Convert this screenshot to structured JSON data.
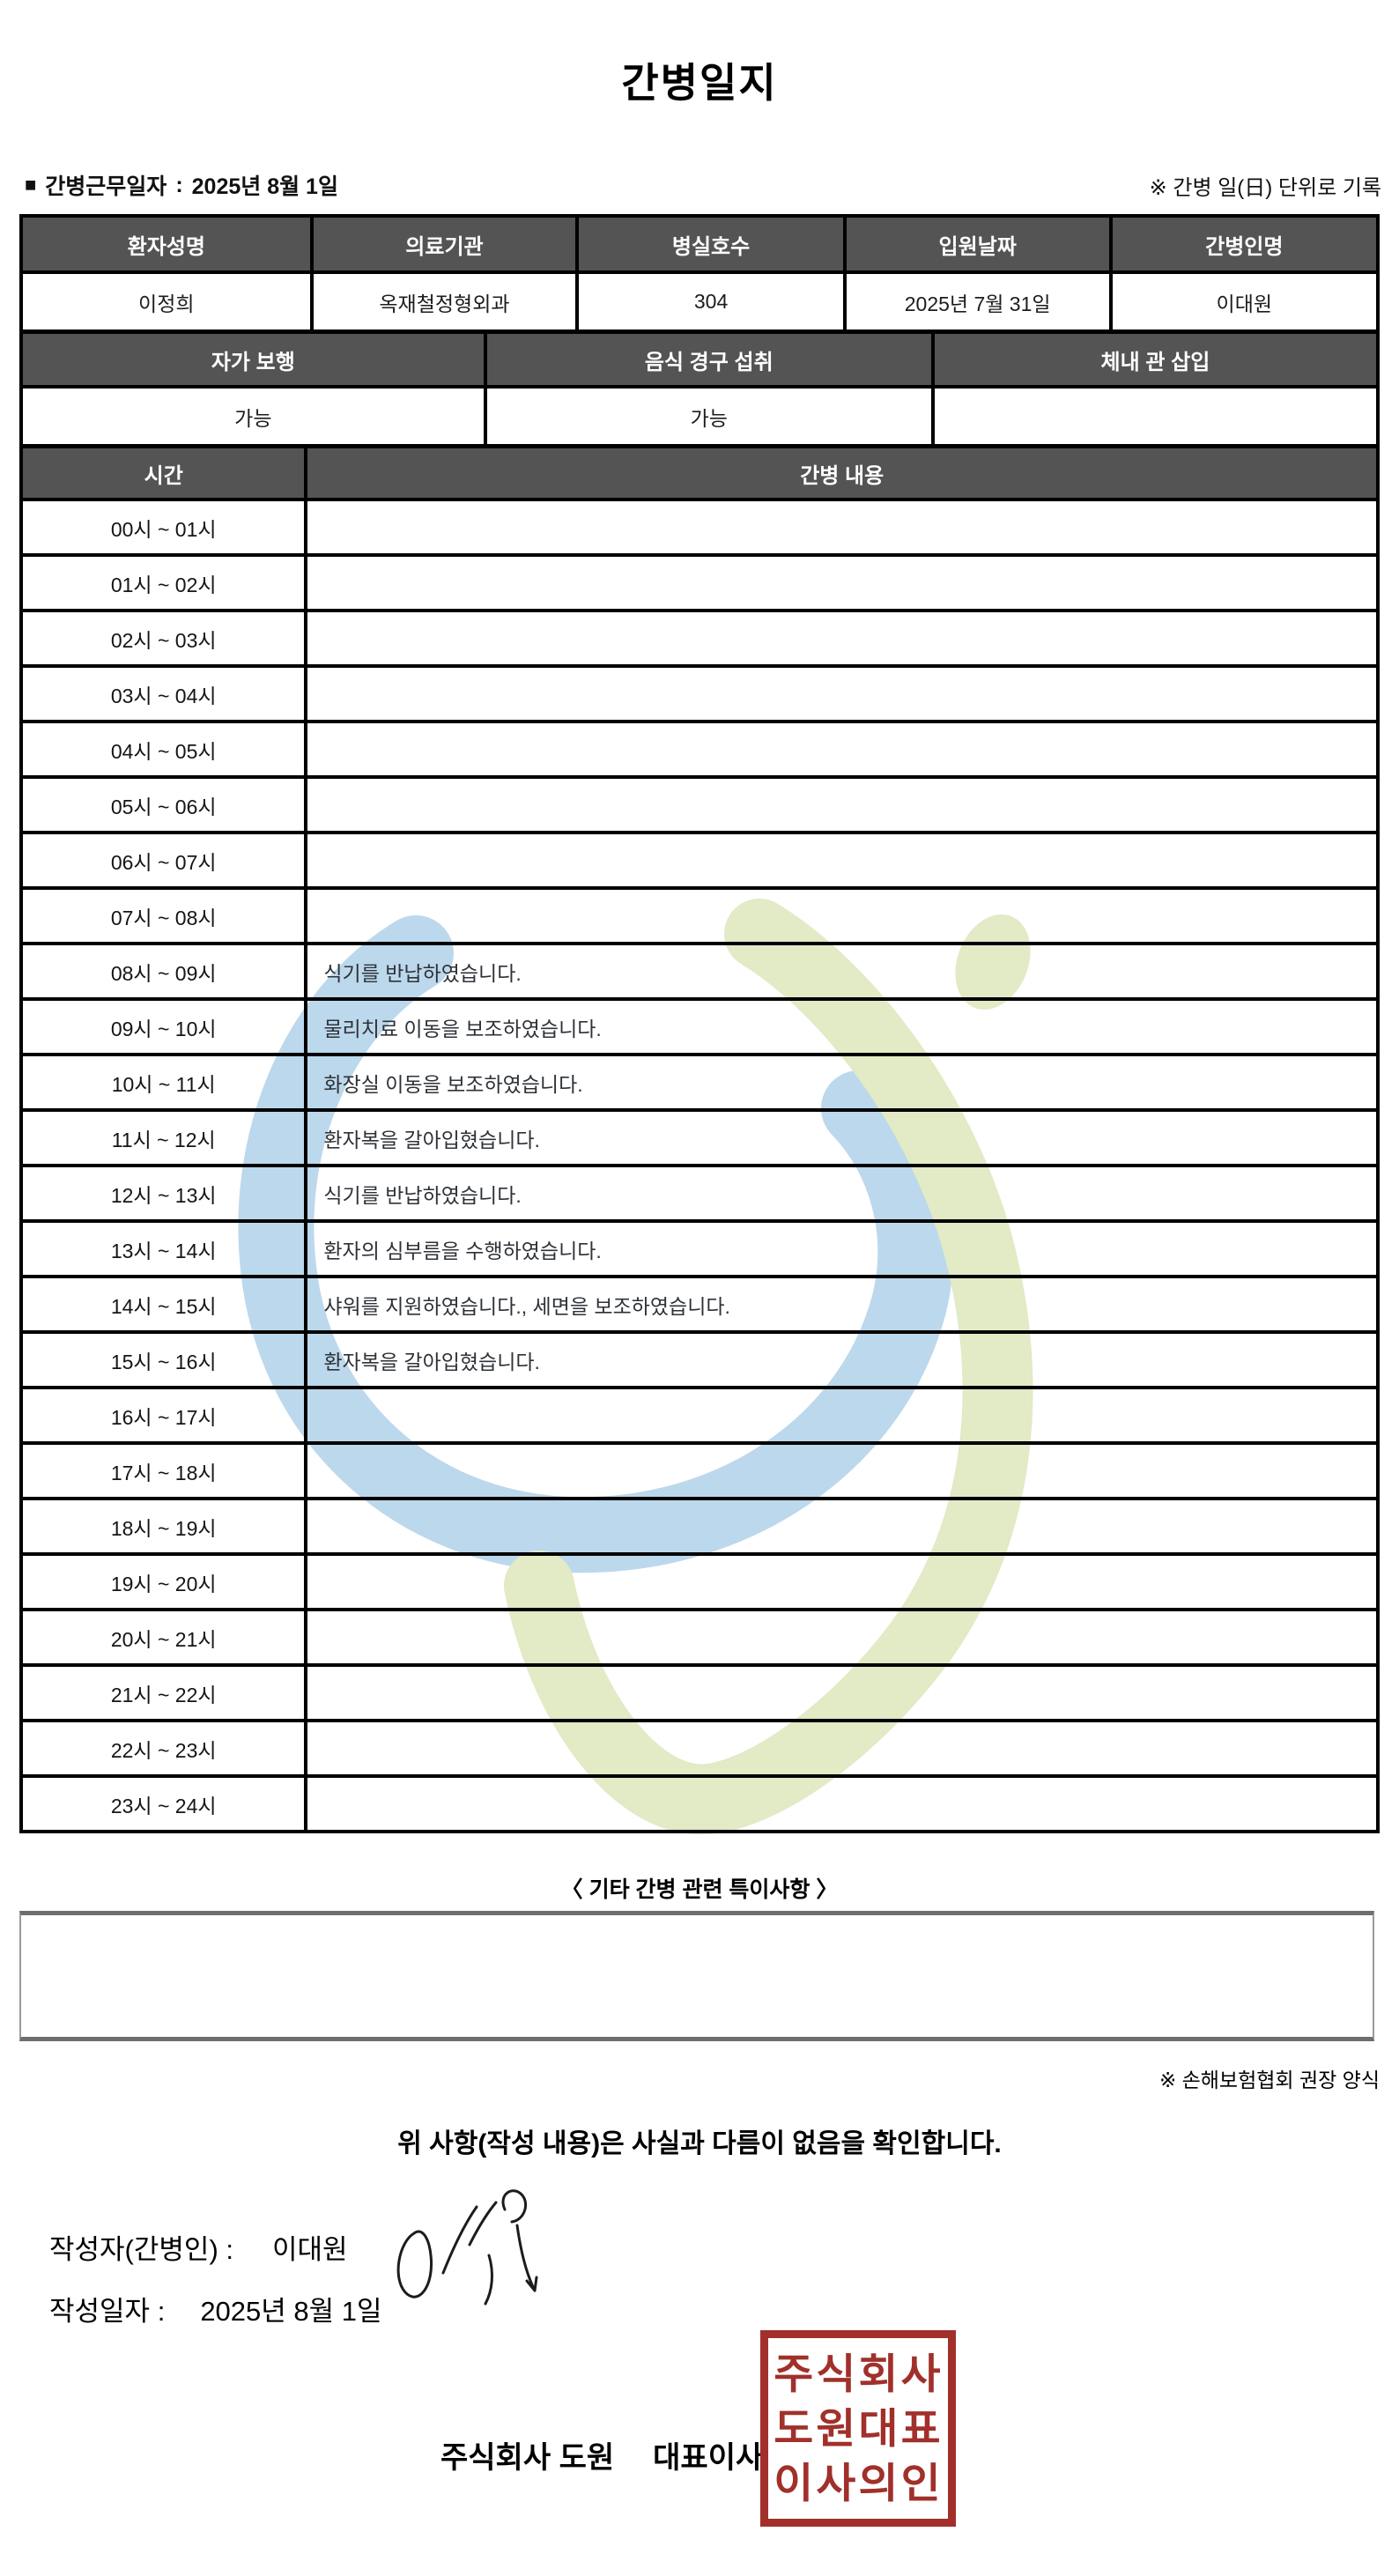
{
  "title": "간병일지",
  "meta": {
    "bullet": "■",
    "work_date_label": "간병근무일자",
    "separator": ":",
    "work_date_value": "2025년 8월 1일",
    "unit_note": "※ 간병 일(日) 단위로 기록"
  },
  "patient_table": {
    "headers": [
      "환자성명",
      "의료기관",
      "병실호수",
      "입원날짜",
      "간병인명"
    ],
    "values": [
      "이정희",
      "옥재철정형외과",
      "304",
      "2025년 7월 31일",
      "이대원"
    ]
  },
  "status_table": {
    "headers": [
      "자가 보행",
      "음식 경구 섭취",
      "체내 관 삽입"
    ],
    "values": [
      "가능",
      "가능",
      ""
    ]
  },
  "log_table": {
    "time_header": "시간",
    "content_header": "간병 내용",
    "rows": [
      {
        "time": "00시 ~ 01시",
        "content": ""
      },
      {
        "time": "01시 ~ 02시",
        "content": ""
      },
      {
        "time": "02시 ~ 03시",
        "content": ""
      },
      {
        "time": "03시 ~ 04시",
        "content": ""
      },
      {
        "time": "04시 ~ 05시",
        "content": ""
      },
      {
        "time": "05시 ~ 06시",
        "content": ""
      },
      {
        "time": "06시 ~ 07시",
        "content": ""
      },
      {
        "time": "07시 ~ 08시",
        "content": ""
      },
      {
        "time": "08시 ~ 09시",
        "content": "식기를 반납하였습니다."
      },
      {
        "time": "09시 ~ 10시",
        "content": "물리치료 이동을 보조하였습니다."
      },
      {
        "time": "10시 ~ 11시",
        "content": "화장실 이동을 보조하였습니다."
      },
      {
        "time": "11시 ~ 12시",
        "content": "환자복을 갈아입혔습니다."
      },
      {
        "time": "12시 ~ 13시",
        "content": "식기를 반납하였습니다."
      },
      {
        "time": "13시 ~ 14시",
        "content": "환자의 심부름을 수행하였습니다."
      },
      {
        "time": "14시 ~ 15시",
        "content": "샤워를 지원하였습니다., 세면을 보조하였습니다."
      },
      {
        "time": "15시 ~ 16시",
        "content": "환자복을 갈아입혔습니다."
      },
      {
        "time": "16시 ~ 17시",
        "content": ""
      },
      {
        "time": "17시 ~ 18시",
        "content": ""
      },
      {
        "time": "18시 ~ 19시",
        "content": ""
      },
      {
        "time": "19시 ~ 20시",
        "content": ""
      },
      {
        "time": "20시 ~ 21시",
        "content": ""
      },
      {
        "time": "21시 ~ 22시",
        "content": ""
      },
      {
        "time": "22시 ~ 23시",
        "content": ""
      },
      {
        "time": "23시 ~ 24시",
        "content": ""
      }
    ]
  },
  "notes": {
    "heading": "〈 기타 간병 관련 특이사항 〉",
    "content": ""
  },
  "footer": {
    "form_note": "※ 손해보험협회 권장 양식",
    "confirmation": "위 사항(작성 내용)은 사실과 다름이 없음을 확인합니다.",
    "writer_label": "작성자(간병인) :",
    "writer_value": "이대원",
    "date_label": "작성일자 :",
    "date_value": "2025년 8월 1일",
    "company_name": "주식회사 도원",
    "ceo_label": "대표이사",
    "stamp_lines": [
      "주식회사",
      "도원대표",
      "이사의인"
    ]
  },
  "colors": {
    "table_header_bg": "#545454",
    "stamp_red": "#a1302b",
    "watermark_blue": "#b5d4ea",
    "watermark_green": "#dfe8c0"
  }
}
